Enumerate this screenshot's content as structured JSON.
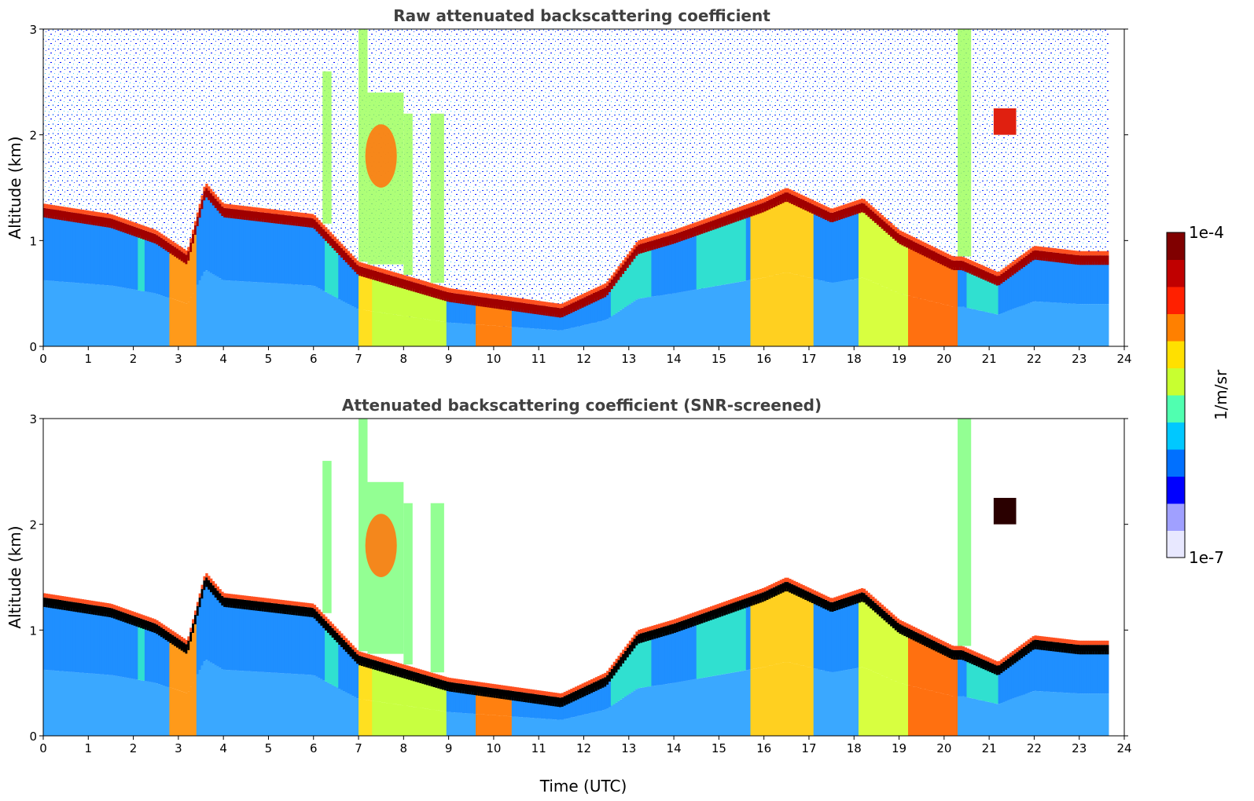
{
  "chart_data": [
    {
      "type": "heatmap",
      "title": "Raw attenuated backscattering coefficient",
      "xlabel": "",
      "ylabel": "Altitude (km)",
      "xlim": [
        0,
        24
      ],
      "ylim": [
        0,
        3
      ],
      "x_ticks": [
        "0",
        "1",
        "2",
        "3",
        "4",
        "5",
        "6",
        "7",
        "8",
        "9",
        "10",
        "11",
        "12",
        "13",
        "14",
        "15",
        "16",
        "17",
        "18",
        "19",
        "20",
        "21",
        "22",
        "23",
        "24"
      ],
      "y_ticks": [
        "0",
        "1",
        "2",
        "3"
      ],
      "data_end_time": 23.65,
      "cloud_top_km": [
        [
          0,
          1.25
        ],
        [
          1.5,
          1.15
        ],
        [
          2.5,
          1.0
        ],
        [
          3.2,
          0.8
        ],
        [
          3.6,
          1.45
        ],
        [
          4.0,
          1.25
        ],
        [
          6.0,
          1.15
        ],
        [
          7.0,
          0.7
        ],
        [
          9.0,
          0.45
        ],
        [
          11.5,
          0.3
        ],
        [
          12.5,
          0.5
        ],
        [
          13.2,
          0.9
        ],
        [
          14,
          1.0
        ],
        [
          15,
          1.15
        ],
        [
          16,
          1.3
        ],
        [
          16.5,
          1.4
        ],
        [
          17.5,
          1.2
        ],
        [
          18.2,
          1.3
        ],
        [
          19,
          1.0
        ],
        [
          20.2,
          0.75
        ],
        [
          20.4,
          0.75
        ],
        [
          21.2,
          0.6
        ],
        [
          22,
          0.85
        ],
        [
          23,
          0.8
        ]
      ],
      "note": "background noise above cloud layer shown (raw)"
    },
    {
      "type": "heatmap",
      "title": "Attenuated backscattering coefficient (SNR-screened)",
      "xlabel": "Time (UTC)",
      "ylabel": "Altitude (km)",
      "xlim": [
        0,
        24
      ],
      "ylim": [
        0,
        3
      ],
      "x_ticks": [
        "0",
        "1",
        "2",
        "3",
        "4",
        "5",
        "6",
        "7",
        "8",
        "9",
        "10",
        "11",
        "12",
        "13",
        "14",
        "15",
        "16",
        "17",
        "18",
        "19",
        "20",
        "21",
        "22",
        "23",
        "24"
      ],
      "y_ticks": [
        "0",
        "1",
        "2",
        "3"
      ],
      "data_end_time": 23.65,
      "note": "low-SNR pixels removed (white)"
    }
  ],
  "colorbar": {
    "label": "1/m/sr",
    "min_label": "1e-7",
    "max_label": "1e-4",
    "colors": [
      "#e8e8ff",
      "#a0a0ff",
      "#0000ff",
      "#0070ff",
      "#00c8ff",
      "#50ffb0",
      "#c8ff30",
      "#ffe000",
      "#ff8000",
      "#ff2000",
      "#c00000",
      "#800000"
    ]
  }
}
